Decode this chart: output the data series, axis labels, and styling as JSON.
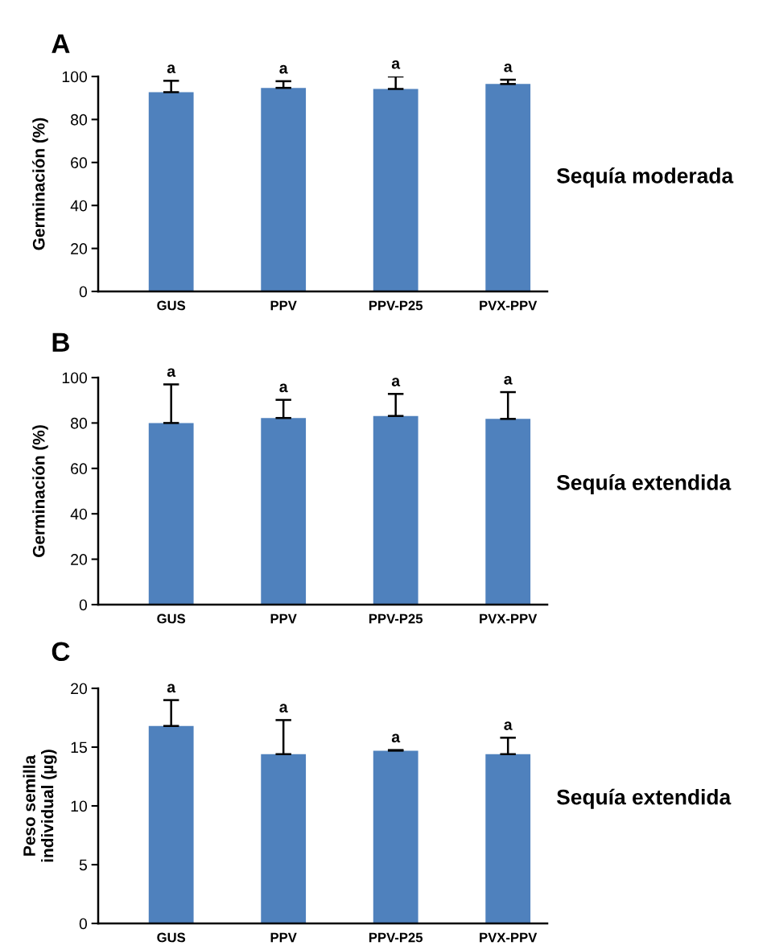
{
  "chart_data": [
    {
      "type": "bar",
      "title": "A",
      "subtitle": "Sequía moderada",
      "ylabel": "Germinación (%)",
      "categories": [
        "GUS",
        "PPV",
        "PPV-P25",
        "PVX-PPV"
      ],
      "values": [
        92.7,
        94.7,
        94.2,
        96.5
      ],
      "color": "#4f81bd",
      "errors": [
        [
          92.7,
          98
        ],
        [
          94.7,
          97.8
        ],
        [
          94.2,
          100
        ],
        [
          96.5,
          98.5
        ]
      ],
      "ylim": [
        0,
        100
      ],
      "yticks": [
        0,
        20,
        40,
        60,
        80,
        100
      ],
      "grid": false,
      "annotations": [
        {
          "text": "a",
          "x": "GUS",
          "y": 98
        },
        {
          "text": "a",
          "x": "PPV",
          "y": 97.8
        },
        {
          "text": "a",
          "x": "PPV-P25",
          "y": 100
        },
        {
          "text": "a",
          "x": "PVX-PPV",
          "y": 98.5
        }
      ]
    },
    {
      "type": "bar",
      "title": "B",
      "subtitle": "Sequía extendida",
      "ylabel": "Germinación (%)",
      "categories": [
        "GUS",
        "PPV",
        "PPV-P25",
        "PVX-PPV"
      ],
      "values": [
        80,
        82.2,
        83.1,
        81.8
      ],
      "color": "#4f81bd",
      "errors": [
        [
          80,
          97
        ],
        [
          82.2,
          90.2
        ],
        [
          83.1,
          92.8
        ],
        [
          81.8,
          93.6
        ]
      ],
      "ylim": [
        0,
        100
      ],
      "yticks": [
        0,
        20,
        40,
        60,
        80,
        100
      ],
      "grid": false,
      "annotations": [
        {
          "text": "a",
          "x": "GUS",
          "y": 97
        },
        {
          "text": "a",
          "x": "PPV",
          "y": 90.2
        },
        {
          "text": "a",
          "x": "PPV-P25",
          "y": 92.8
        },
        {
          "text": "a",
          "x": "PVX-PPV",
          "y": 93.6
        }
      ]
    },
    {
      "type": "bar",
      "title": "C",
      "subtitle": "Sequía extendida",
      "ylabel": "Peso semilla\nindividual (µg)",
      "categories": [
        "GUS",
        "PPV",
        "PPV-P25",
        "PVX-PPV"
      ],
      "values": [
        16.8,
        14.4,
        14.7,
        14.4
      ],
      "color": "#4f81bd",
      "errors": [
        [
          16.8,
          19
        ],
        [
          14.4,
          17.3
        ],
        [
          14.7,
          14.75
        ],
        [
          14.4,
          15.8
        ]
      ],
      "ylim": [
        0,
        20
      ],
      "yticks": [
        0,
        5,
        10,
        15,
        20
      ],
      "grid": false,
      "annotations": [
        {
          "text": "a",
          "x": "GUS",
          "y": 19
        },
        {
          "text": "a",
          "x": "PPV",
          "y": 17.3
        },
        {
          "text": "a",
          "x": "PPV-P25",
          "y": 14.75
        },
        {
          "text": "a",
          "x": "PVX-PPV",
          "y": 15.8
        }
      ]
    }
  ]
}
